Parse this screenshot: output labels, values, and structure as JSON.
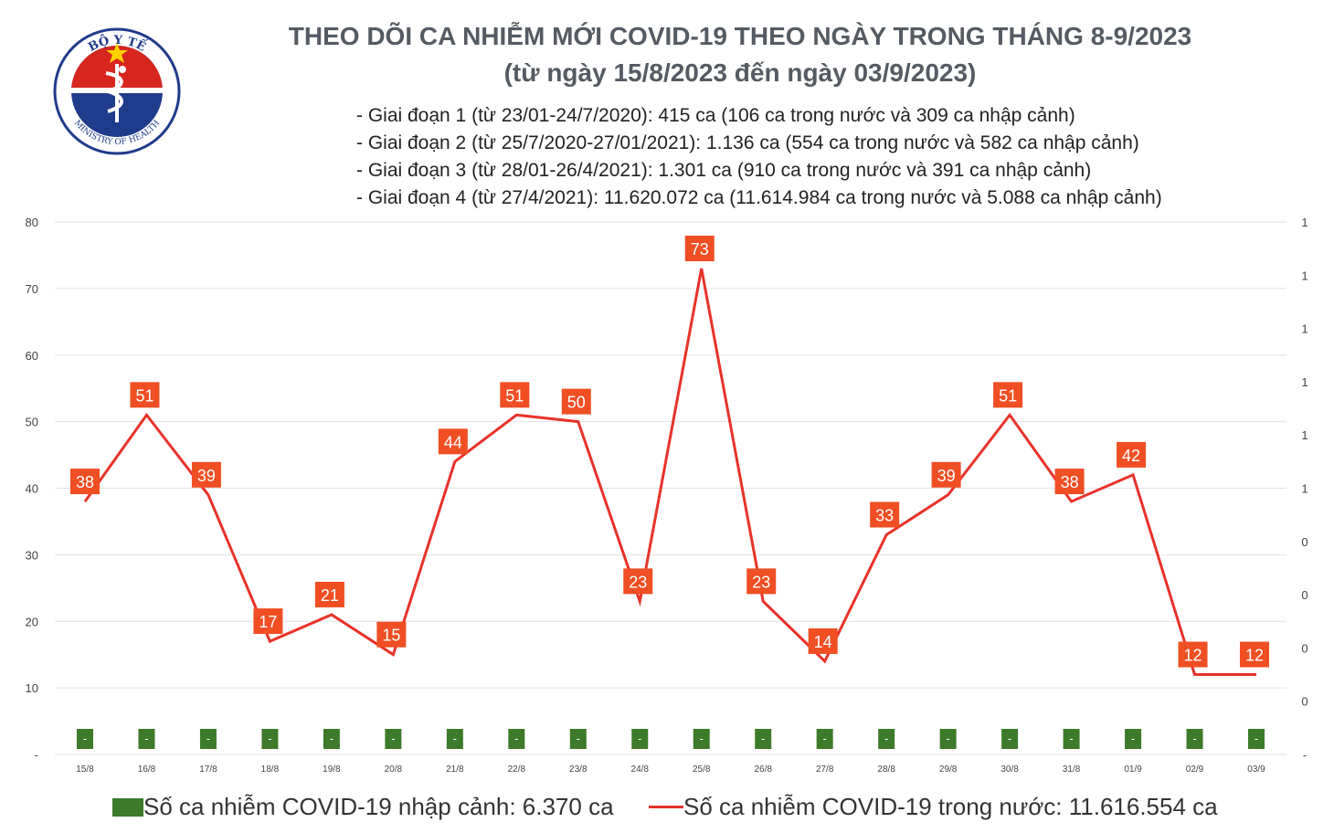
{
  "header": {
    "title_line1": "THEO DÕI CA NHIỄM MỚI COVID-19 THEO NGÀY TRONG THÁNG 8-9/2023",
    "title_line2": "(từ ngày 15/8/2023 đến ngày 03/9/2023)"
  },
  "stages": [
    "- Giai đoạn 1 (từ 23/01-24/7/2020): 415 ca (106 ca trong nước và 309 ca nhập cảnh)",
    "- Giai đoạn 2 (từ 25/7/2020-27/01/2021): 1.136 ca (554 ca trong nước và 582 ca nhập cảnh)",
    "- Giai đoạn 3 (từ 28/01-26/4/2021): 1.301 ca (910 ca trong nước và 391 ca nhập cảnh)",
    "- Giai đoạn 4 (từ 27/4/2021): 11.620.072 ca (11.614.984 ca trong nước và 5.088 ca nhập cảnh)"
  ],
  "logo": {
    "text_top": "BỘ Y TẾ",
    "text_bottom": "MINISTRY OF HEALTH",
    "icon": "caduceus-star-icon"
  },
  "legend": {
    "imported": "Số ca nhiễm COVID-19 nhập cảnh: 6.370 ca",
    "domestic": "Số ca nhiễm COVID-19 trong nước: 11.616.554 ca"
  },
  "colors": {
    "line": "#e8322a",
    "label_bg": "#f04e23",
    "bar": "#3d7a2a",
    "grid": "#e2e2e2",
    "title": "#555b63"
  },
  "chart_data": {
    "type": "line",
    "categories": [
      "15/8",
      "16/8",
      "17/8",
      "18/8",
      "19/8",
      "20/8",
      "21/8",
      "22/8",
      "23/8",
      "24/8",
      "25/8",
      "26/8",
      "27/8",
      "28/8",
      "29/8",
      "30/8",
      "31/8",
      "01/9",
      "02/9",
      "03/9"
    ],
    "series": [
      {
        "name": "Số ca nhiễm COVID-19 trong nước",
        "values": [
          38,
          51,
          39,
          17,
          21,
          15,
          44,
          51,
          50,
          23,
          73,
          23,
          14,
          33,
          39,
          51,
          38,
          42,
          12,
          12
        ]
      },
      {
        "name": "Số ca nhiễm COVID-19 nhập cảnh",
        "values": [
          0,
          0,
          0,
          0,
          0,
          0,
          0,
          0,
          0,
          0,
          0,
          0,
          0,
          0,
          0,
          0,
          0,
          0,
          0,
          0
        ],
        "bar_labels": [
          "-",
          "-",
          "-",
          "-",
          "-",
          "-",
          "-",
          "-",
          "-",
          "-",
          "-",
          "-",
          "-",
          "-",
          "-",
          "-",
          "-",
          "-",
          "-",
          "-"
        ]
      }
    ],
    "ylim": [
      0,
      80
    ],
    "y_ticks": [
      "-",
      "10",
      "20",
      "30",
      "40",
      "50",
      "60",
      "70",
      "80"
    ],
    "y2_ticks": [
      "-",
      "0",
      "0",
      "0",
      "0",
      "1",
      "1",
      "1",
      "1",
      "1",
      "1"
    ],
    "grid": true,
    "legend_position": "bottom"
  }
}
